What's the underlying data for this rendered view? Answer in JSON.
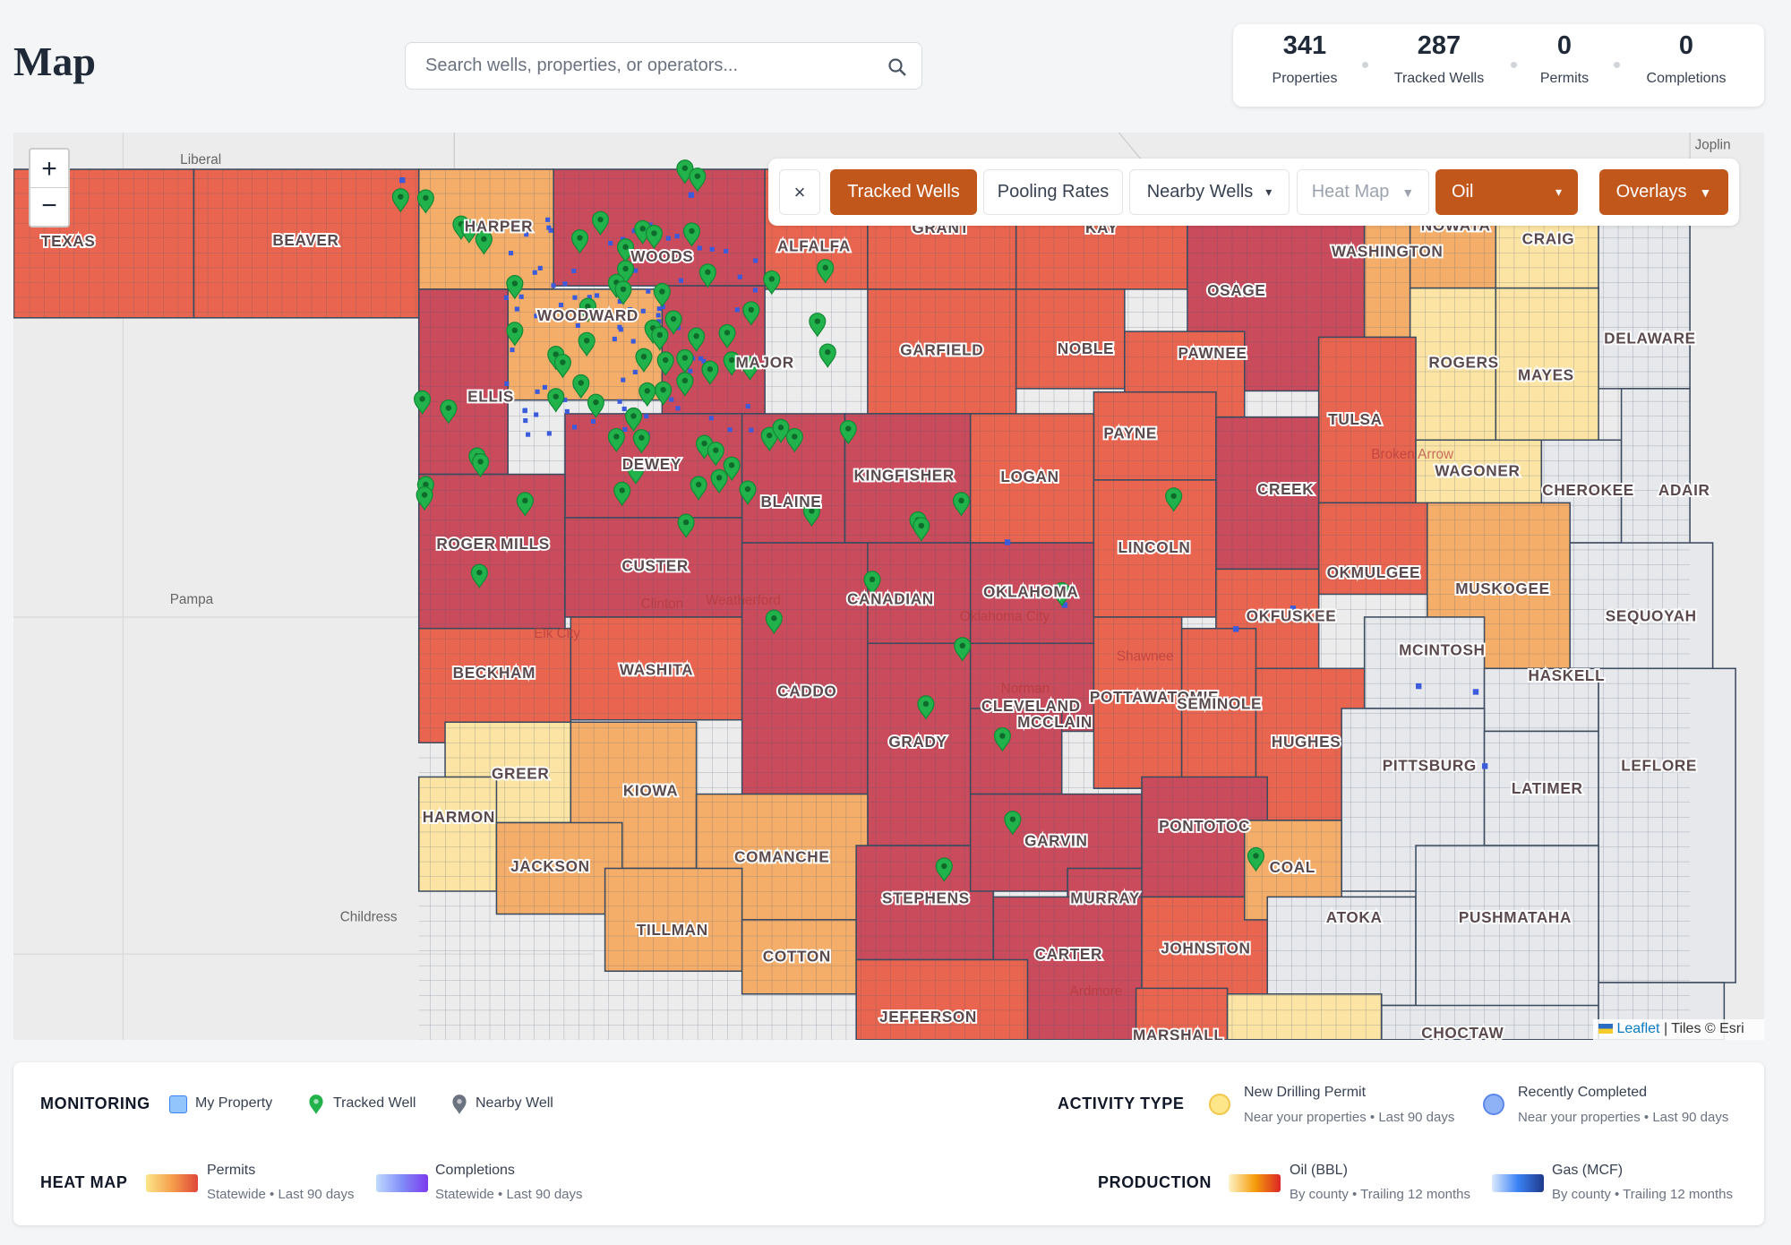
{
  "header": {
    "title": "Map",
    "search_placeholder": "Search wells, properties, or operators..."
  },
  "stats": [
    {
      "value": 341,
      "label": "Properties"
    },
    {
      "value": 287,
      "label": "Tracked Wells"
    },
    {
      "value": 0,
      "label": "Permits"
    },
    {
      "value": 0,
      "label": "Completions"
    }
  ],
  "toolbar": {
    "close": "×",
    "buttons": [
      "Tracked Wells",
      "Pooling Rates",
      "Nearby Wells",
      "Heat Map",
      "Oil",
      "Overlays"
    ]
  },
  "map": {
    "zoom_in": "+",
    "zoom_out": "−",
    "counties": [
      "TEXAS",
      "BEAVER",
      "HARPER",
      "WOODS",
      "ALFALFA",
      "GRANT",
      "KAY",
      "OSAGE",
      "WASHINGTON",
      "NOWATA",
      "CRAIG",
      "DELAWARE",
      "WOODWARD",
      "ELLIS",
      "MAJOR",
      "GARFIELD",
      "NOBLE",
      "PAWNEE",
      "ROGERS",
      "MAYES",
      "TULSA",
      "PAYNE",
      "DEWEY",
      "BLAINE",
      "KINGFISHER",
      "LOGAN",
      "CREEK",
      "WAGONER",
      "CHEROKEE",
      "ADAIR",
      "ROGER MILLS",
      "CUSTER",
      "CANADIAN",
      "OKLAHOMA",
      "LINCOLN",
      "OKMULGEE",
      "MUSKOGEE",
      "SEQUOYAH",
      "OKFUSKEE",
      "MCINTOSH",
      "HASKELL",
      "BECKHAM",
      "WASHITA",
      "CADDO",
      "GRADY",
      "CLEVELAND",
      "MCCLAIN",
      "POTTAWATOMIE",
      "SEMINOLE",
      "HUGHES",
      "PITTSBURG",
      "LATIMER",
      "LEFLORE",
      "GREER",
      "HARMON",
      "KIOWA",
      "JACKSON",
      "COMANCHE",
      "TILLMAN",
      "COTTON",
      "STEPHENS",
      "GARVIN",
      "MURRAY",
      "PONTOTOC",
      "CARTER",
      "JOHNSTON",
      "COAL",
      "ATOKA",
      "PUSHMATAHA",
      "JEFFERSON",
      "MARSHALL",
      "CHOCTAW"
    ],
    "places": [
      "Liberal",
      "Pampa",
      "Childress",
      "Joplin",
      "Oklahoma City",
      "Broken Arrow",
      "Clinton",
      "Weatherford",
      "Elk City",
      "Shawnee",
      "Norman",
      "Ardmore"
    ],
    "attribution": {
      "link": "Leaflet",
      "text": "| Tiles © Esri"
    }
  },
  "legend": {
    "monitoring": {
      "title": "MONITORING",
      "items": [
        "My Property",
        "Tracked Well",
        "Nearby Well"
      ]
    },
    "activity": {
      "title": "ACTIVITY TYPE",
      "items": [
        {
          "name": "New Drilling Permit",
          "sub": "Near your properties • Last 90 days"
        },
        {
          "name": "Recently Completed",
          "sub": "Near your properties • Last 90 days"
        }
      ]
    },
    "heat_map": {
      "title": "HEAT MAP",
      "items": [
        {
          "name": "Permits",
          "sub": "Statewide • Last 90 days"
        },
        {
          "name": "Completions",
          "sub": "Statewide • Last 90 days"
        }
      ]
    },
    "production": {
      "title": "PRODUCTION",
      "items": [
        {
          "name": "Oil (BBL)",
          "sub": "By county • Trailing 12 months"
        },
        {
          "name": "Gas (MCF)",
          "sub": "By county • Trailing 12 months"
        }
      ]
    }
  }
}
